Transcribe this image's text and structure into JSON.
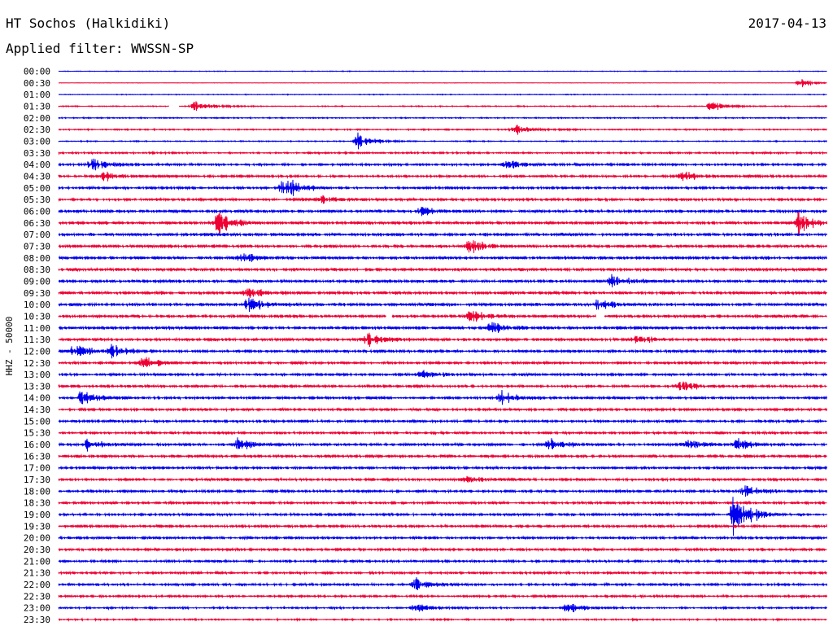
{
  "header": {
    "station": "HT Sochos (Halkidiki)",
    "date": "2017-04-13",
    "filter": "Applied filter: WWSSN-SP"
  },
  "chart_data": {
    "type": "line",
    "title": "HT Sochos (Halkidiki)",
    "channel_label": "HHZ - 50000",
    "y_tick_labels": [
      "00:00",
      "00:30",
      "01:00",
      "01:30",
      "02:00",
      "02:30",
      "03:00",
      "03:30",
      "04:00",
      "04:30",
      "05:00",
      "05:30",
      "06:00",
      "06:30",
      "07:00",
      "07:30",
      "08:00",
      "08:30",
      "09:00",
      "09:30",
      "10:00",
      "10:30",
      "11:00",
      "11:30",
      "12:00",
      "12:30",
      "13:00",
      "13:30",
      "14:00",
      "14:30",
      "15:00",
      "15:30",
      "16:00",
      "16:30",
      "17:00",
      "17:30",
      "18:00",
      "18:30",
      "19:00",
      "19:30",
      "20:00",
      "20:30",
      "21:00",
      "21:30",
      "22:00",
      "22:30",
      "23:00",
      "23:30"
    ],
    "x_range_minutes": [
      0,
      30
    ],
    "series_colors": [
      "#0000ee",
      "#ee0033"
    ],
    "noise_level": [
      0.25,
      0.12,
      0.3,
      0.4,
      0.45,
      0.5,
      0.4,
      0.7,
      0.9,
      0.9,
      1.0,
      1.0,
      1.1,
      1.2,
      1.2,
      1.2,
      1.2,
      1.2,
      1.2,
      1.2,
      1.2,
      1.2,
      1.2,
      1.1,
      1.1,
      1.0,
      1.0,
      1.0,
      1.0,
      1.0,
      1.0,
      1.0,
      1.1,
      1.1,
      1.0,
      1.0,
      1.0,
      1.0,
      1.0,
      1.0,
      1.0,
      1.0,
      0.9,
      0.9,
      0.9,
      0.8,
      0.7,
      0.6
    ],
    "events": [
      {
        "row": 1,
        "t": 29.0,
        "amp": 5
      },
      {
        "row": 3,
        "t": 5.3,
        "amp": 7
      },
      {
        "row": 3,
        "t": 25.5,
        "amp": 6
      },
      {
        "row": 5,
        "t": 17.8,
        "amp": 6
      },
      {
        "row": 6,
        "t": 11.7,
        "amp": 9
      },
      {
        "row": 8,
        "t": 1.3,
        "amp": 9
      },
      {
        "row": 8,
        "t": 17.5,
        "amp": 6
      },
      {
        "row": 9,
        "t": 1.8,
        "amp": 7
      },
      {
        "row": 9,
        "t": 24.4,
        "amp": 6
      },
      {
        "row": 10,
        "t": 8.8,
        "amp": 16
      },
      {
        "row": 11,
        "t": 10.2,
        "amp": 6
      },
      {
        "row": 12,
        "t": 14.2,
        "amp": 6
      },
      {
        "row": 13,
        "t": 6.2,
        "amp": 14
      },
      {
        "row": 13,
        "t": 28.9,
        "amp": 12
      },
      {
        "row": 15,
        "t": 16.0,
        "amp": 10
      },
      {
        "row": 16,
        "t": 7.2,
        "amp": 8
      },
      {
        "row": 18,
        "t": 21.6,
        "amp": 8
      },
      {
        "row": 19,
        "t": 7.4,
        "amp": 7
      },
      {
        "row": 20,
        "t": 7.4,
        "amp": 9
      },
      {
        "row": 20,
        "t": 21.1,
        "amp": 7
      },
      {
        "row": 21,
        "t": 16.1,
        "amp": 10
      },
      {
        "row": 22,
        "t": 16.9,
        "amp": 8
      },
      {
        "row": 23,
        "t": 12.1,
        "amp": 8
      },
      {
        "row": 23,
        "t": 22.5,
        "amp": 6
      },
      {
        "row": 24,
        "t": 0.6,
        "amp": 8
      },
      {
        "row": 24,
        "t": 2.1,
        "amp": 8
      },
      {
        "row": 25,
        "t": 3.3,
        "amp": 7
      },
      {
        "row": 26,
        "t": 14.2,
        "amp": 6
      },
      {
        "row": 27,
        "t": 24.3,
        "amp": 9
      },
      {
        "row": 28,
        "t": 0.9,
        "amp": 9
      },
      {
        "row": 28,
        "t": 17.3,
        "amp": 8
      },
      {
        "row": 32,
        "t": 1.1,
        "amp": 7
      },
      {
        "row": 32,
        "t": 7.0,
        "amp": 9
      },
      {
        "row": 32,
        "t": 19.1,
        "amp": 9
      },
      {
        "row": 32,
        "t": 24.5,
        "amp": 7
      },
      {
        "row": 32,
        "t": 26.5,
        "amp": 8
      },
      {
        "row": 35,
        "t": 15.9,
        "amp": 5
      },
      {
        "row": 36,
        "t": 26.8,
        "amp": 8
      },
      {
        "row": 38,
        "t": 26.4,
        "amp": 24
      },
      {
        "row": 44,
        "t": 13.9,
        "amp": 9
      },
      {
        "row": 46,
        "t": 13.9,
        "amp": 7
      },
      {
        "row": 46,
        "t": 19.9,
        "amp": 6
      }
    ],
    "gaps": [
      {
        "row": 3,
        "t0": 4.3,
        "t1": 4.7
      },
      {
        "row": 21,
        "t0": 12.8,
        "t1": 13.0
      },
      {
        "row": 21,
        "t0": 21.0,
        "t1": 21.3
      }
    ]
  }
}
